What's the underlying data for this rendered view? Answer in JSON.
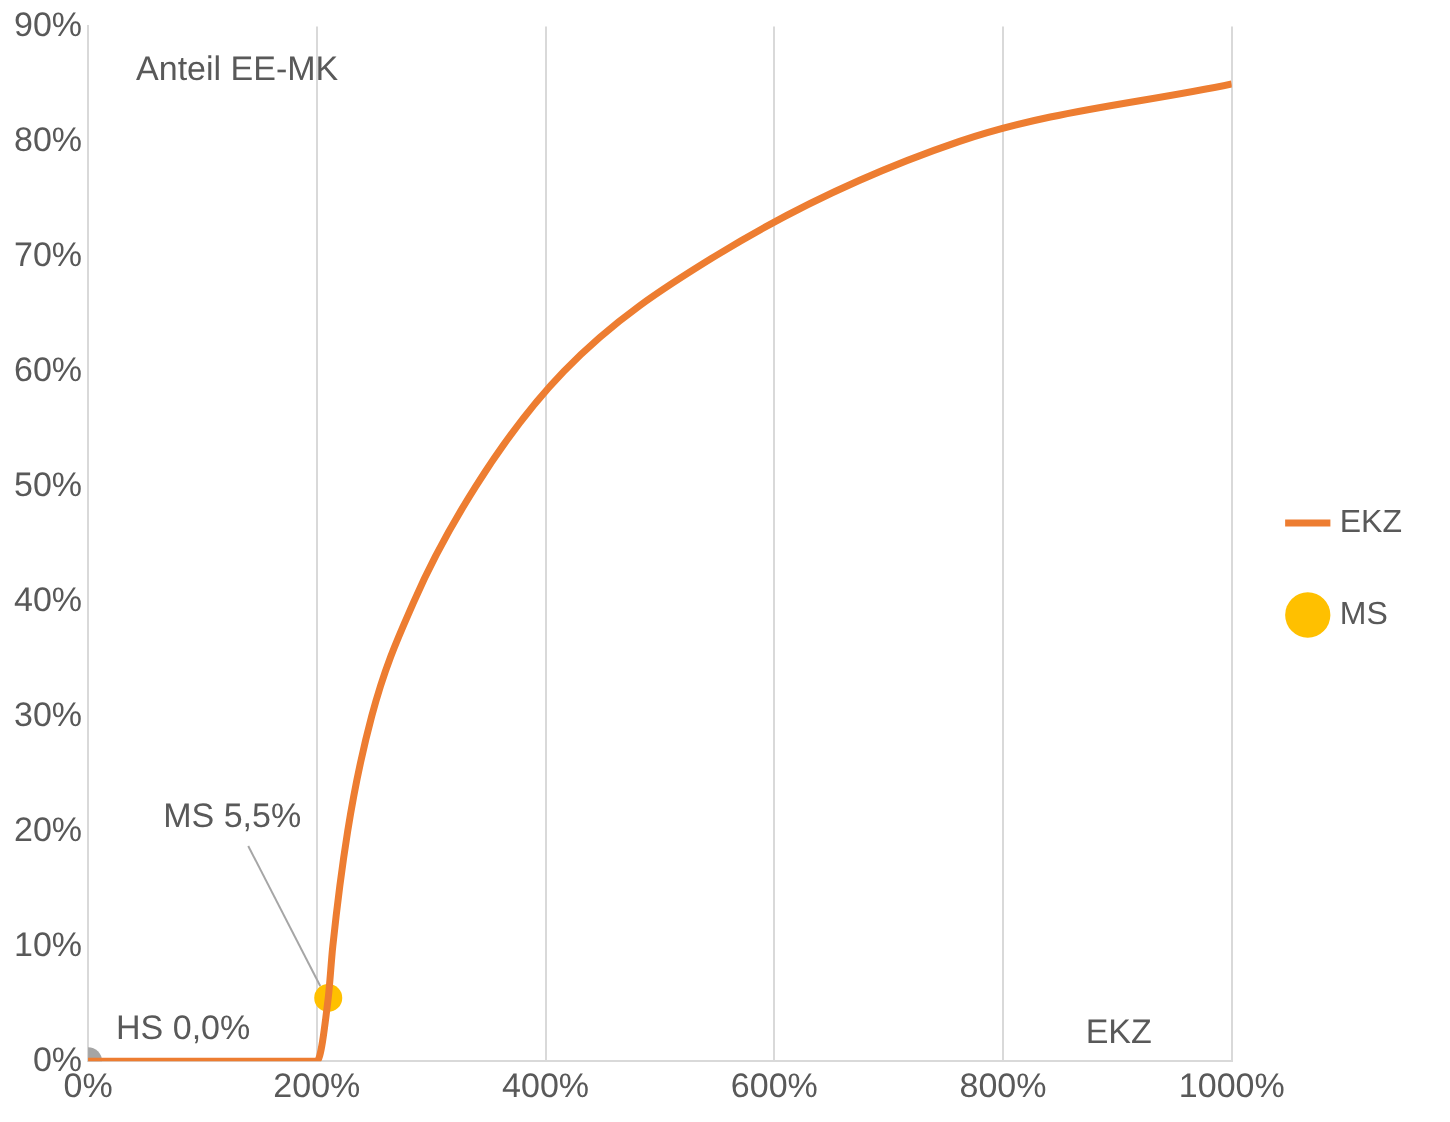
{
  "chart_data": {
    "type": "line",
    "ylabel": "Anteil EE-MK",
    "xlabel": "EKZ",
    "xlim": [
      0,
      1000
    ],
    "xticks": [
      {
        "value": 0,
        "label": "0%"
      },
      {
        "value": 200,
        "label": "200%"
      },
      {
        "value": 400,
        "label": "400%"
      },
      {
        "value": 600,
        "label": "600%"
      },
      {
        "value": 800,
        "label": "800%"
      },
      {
        "value": 1000,
        "label": "1000%"
      }
    ],
    "ylim": [
      0,
      90
    ],
    "yticks": [
      {
        "value": 0,
        "label": "0%"
      },
      {
        "value": 10,
        "label": "10%"
      },
      {
        "value": 20,
        "label": "20%"
      },
      {
        "value": 30,
        "label": "30%"
      },
      {
        "value": 40,
        "label": "40%"
      },
      {
        "value": 50,
        "label": "50%"
      },
      {
        "value": 60,
        "label": "60%"
      },
      {
        "value": 70,
        "label": "70%"
      },
      {
        "value": 80,
        "label": "80%"
      },
      {
        "value": 90,
        "label": "90%"
      }
    ],
    "grid": "x",
    "legend": "right",
    "marker": "none",
    "series": [
      {
        "name": "EKZ",
        "color": "#ed7d31",
        "x": [
          0,
          200,
          210,
          214,
          227,
          248,
          285,
          339,
          416,
          548,
          762,
          1000
        ],
        "values": [
          0,
          0,
          5.5,
          10,
          20,
          30,
          40,
          50,
          60,
          70,
          80,
          85
        ]
      },
      {
        "name": "MS",
        "type": "scatter",
        "marker": "circle",
        "color": "#ffc000",
        "x": [
          210
        ],
        "values": [
          5.5
        ]
      },
      {
        "type": "scatter",
        "marker": "circle",
        "color": "#a5a5a5",
        "x": [
          0
        ],
        "values": [
          0
        ]
      }
    ],
    "annotations": [
      {
        "text": "MS 5,5%",
        "x": 210,
        "y": 5.5
      },
      {
        "text": "HS 0,0%",
        "x": 0,
        "y": 0
      }
    ]
  }
}
